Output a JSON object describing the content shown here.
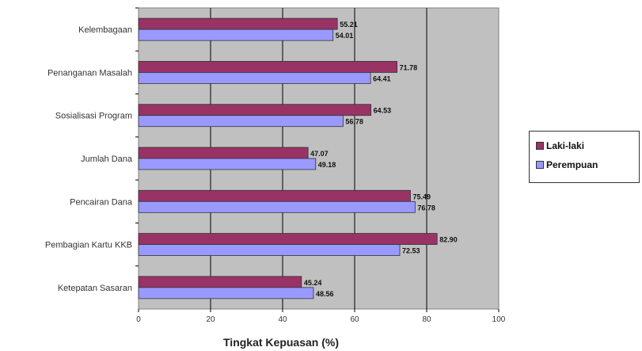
{
  "chart_data": {
    "type": "bar",
    "orientation": "horizontal",
    "categories": [
      "Kelembagaan",
      "Penanganan Masalah",
      "Sosialisasi Program",
      "Jumlah Dana",
      "Pencairan Dana",
      "Pembagian Kartu KKB",
      "Ketepatan Sasaran"
    ],
    "series": [
      {
        "name": "Laki-laki",
        "color": "#993366",
        "values": [
          55.21,
          71.78,
          64.53,
          47.07,
          75.49,
          82.9,
          45.24
        ],
        "labels": [
          "55.21",
          "71.78",
          "64.53",
          "47.07",
          "75.49",
          "82.90",
          "45.24"
        ]
      },
      {
        "name": "Perempuan",
        "color": "#9999ff",
        "values": [
          54.01,
          64.41,
          56.78,
          49.18,
          76.78,
          72.53,
          48.56
        ],
        "labels": [
          "54.01",
          "64.41",
          "56.78",
          "49.18",
          "76.78",
          "72.53",
          "48.56"
        ]
      }
    ],
    "xlabel": "Tingkat Kepuasan (%)",
    "ylabel": "",
    "xlim": [
      0,
      100
    ],
    "xticks": [
      "0",
      "20",
      "40",
      "60",
      "80",
      "100"
    ],
    "grid": true,
    "plot_background": "#c0c0c0",
    "legend_position": "right"
  }
}
